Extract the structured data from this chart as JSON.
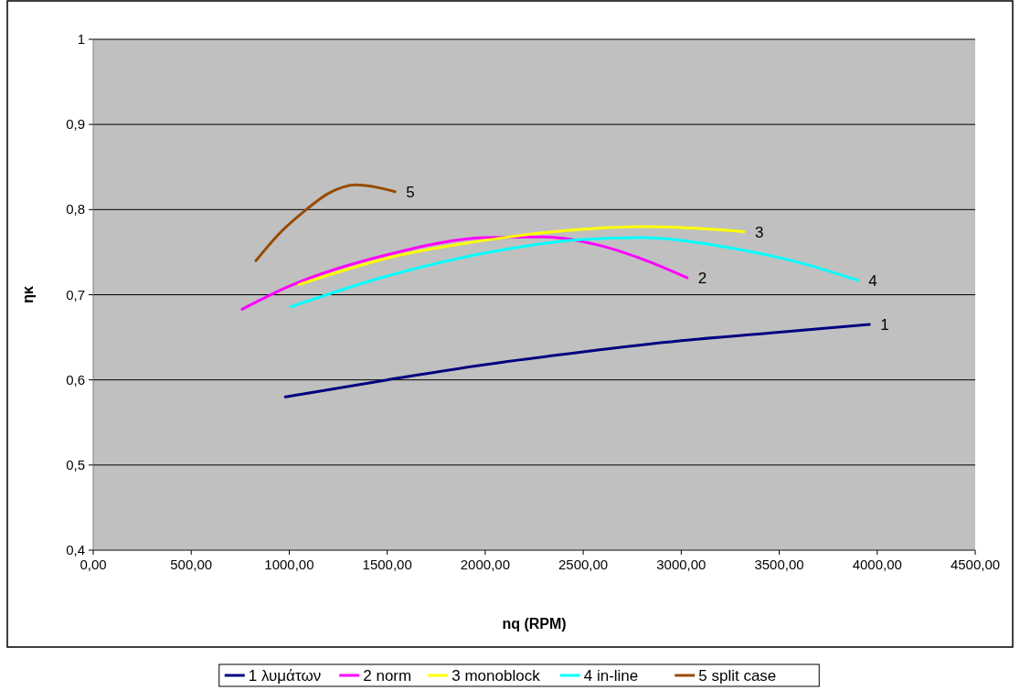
{
  "chart_data": {
    "type": "line",
    "xlabel": "nq (RPM)",
    "ylabel": "ηκ",
    "xlim": [
      0,
      4500
    ],
    "ylim": [
      0.4,
      1
    ],
    "xticks": [
      {
        "value": 0,
        "label": "0,00"
      },
      {
        "value": 500,
        "label": "500,00"
      },
      {
        "value": 1000,
        "label": "1000,00"
      },
      {
        "value": 1500,
        "label": "1500,00"
      },
      {
        "value": 2000,
        "label": "2000,00"
      },
      {
        "value": 2500,
        "label": "2500,00"
      },
      {
        "value": 3000,
        "label": "3000,00"
      },
      {
        "value": 3500,
        "label": "3500,00"
      },
      {
        "value": 4000,
        "label": "4000,00"
      },
      {
        "value": 4500,
        "label": "4500,00"
      }
    ],
    "yticks": [
      {
        "value": 0.4,
        "label": "0,4"
      },
      {
        "value": 0.5,
        "label": "0,5"
      },
      {
        "value": 0.6,
        "label": "0,6"
      },
      {
        "value": 0.7,
        "label": "0,7"
      },
      {
        "value": 0.8,
        "label": "0,8"
      },
      {
        "value": 0.9,
        "label": "0,9"
      },
      {
        "value": 1,
        "label": "1"
      }
    ],
    "grid": "y",
    "legend": "bottom",
    "marker": "none",
    "line_style": "solid",
    "series": [
      {
        "name": "1 λυμάτων",
        "color": "#000080",
        "x": [
          980,
          1500,
          2000,
          2500,
          3000,
          3500,
          3960
        ],
        "values": [
          0.58,
          0.6,
          0.618,
          0.633,
          0.646,
          0.656,
          0.665
        ]
      },
      {
        "name": "2 norm",
        "color": "#ff00ff",
        "x": [
          760,
          1000,
          1500,
          2000,
          2300,
          2600,
          2800,
          3030
        ],
        "values": [
          0.683,
          0.71,
          0.747,
          0.767,
          0.768,
          0.757,
          0.742,
          0.72
        ]
      },
      {
        "name": "3 monoblock",
        "color": "#ffff00",
        "x": [
          1050,
          1500,
          2000,
          2500,
          2800,
          3000,
          3320
        ],
        "values": [
          0.712,
          0.743,
          0.764,
          0.777,
          0.78,
          0.779,
          0.774
        ]
      },
      {
        "name": "4 in-line",
        "color": "#00ffff",
        "x": [
          1010,
          1500,
          2000,
          2500,
          2800,
          3200,
          3600,
          3900
        ],
        "values": [
          0.686,
          0.722,
          0.749,
          0.765,
          0.767,
          0.757,
          0.738,
          0.717
        ]
      },
      {
        "name": "5 split case",
        "color": "#964b00",
        "x": [
          830,
          950,
          1087,
          1200,
          1343,
          1450,
          1540
        ],
        "values": [
          0.74,
          0.772,
          0.8,
          0.819,
          0.829,
          0.826,
          0.821
        ]
      }
    ],
    "annotations": [
      {
        "text": "1",
        "x": 3960,
        "y": 0.665
      },
      {
        "text": "2",
        "x": 3030,
        "y": 0.72
      },
      {
        "text": "3",
        "x": 3320,
        "y": 0.774
      },
      {
        "text": "4",
        "x": 3900,
        "y": 0.717
      },
      {
        "text": "5",
        "x": 1540,
        "y": 0.821
      }
    ]
  }
}
